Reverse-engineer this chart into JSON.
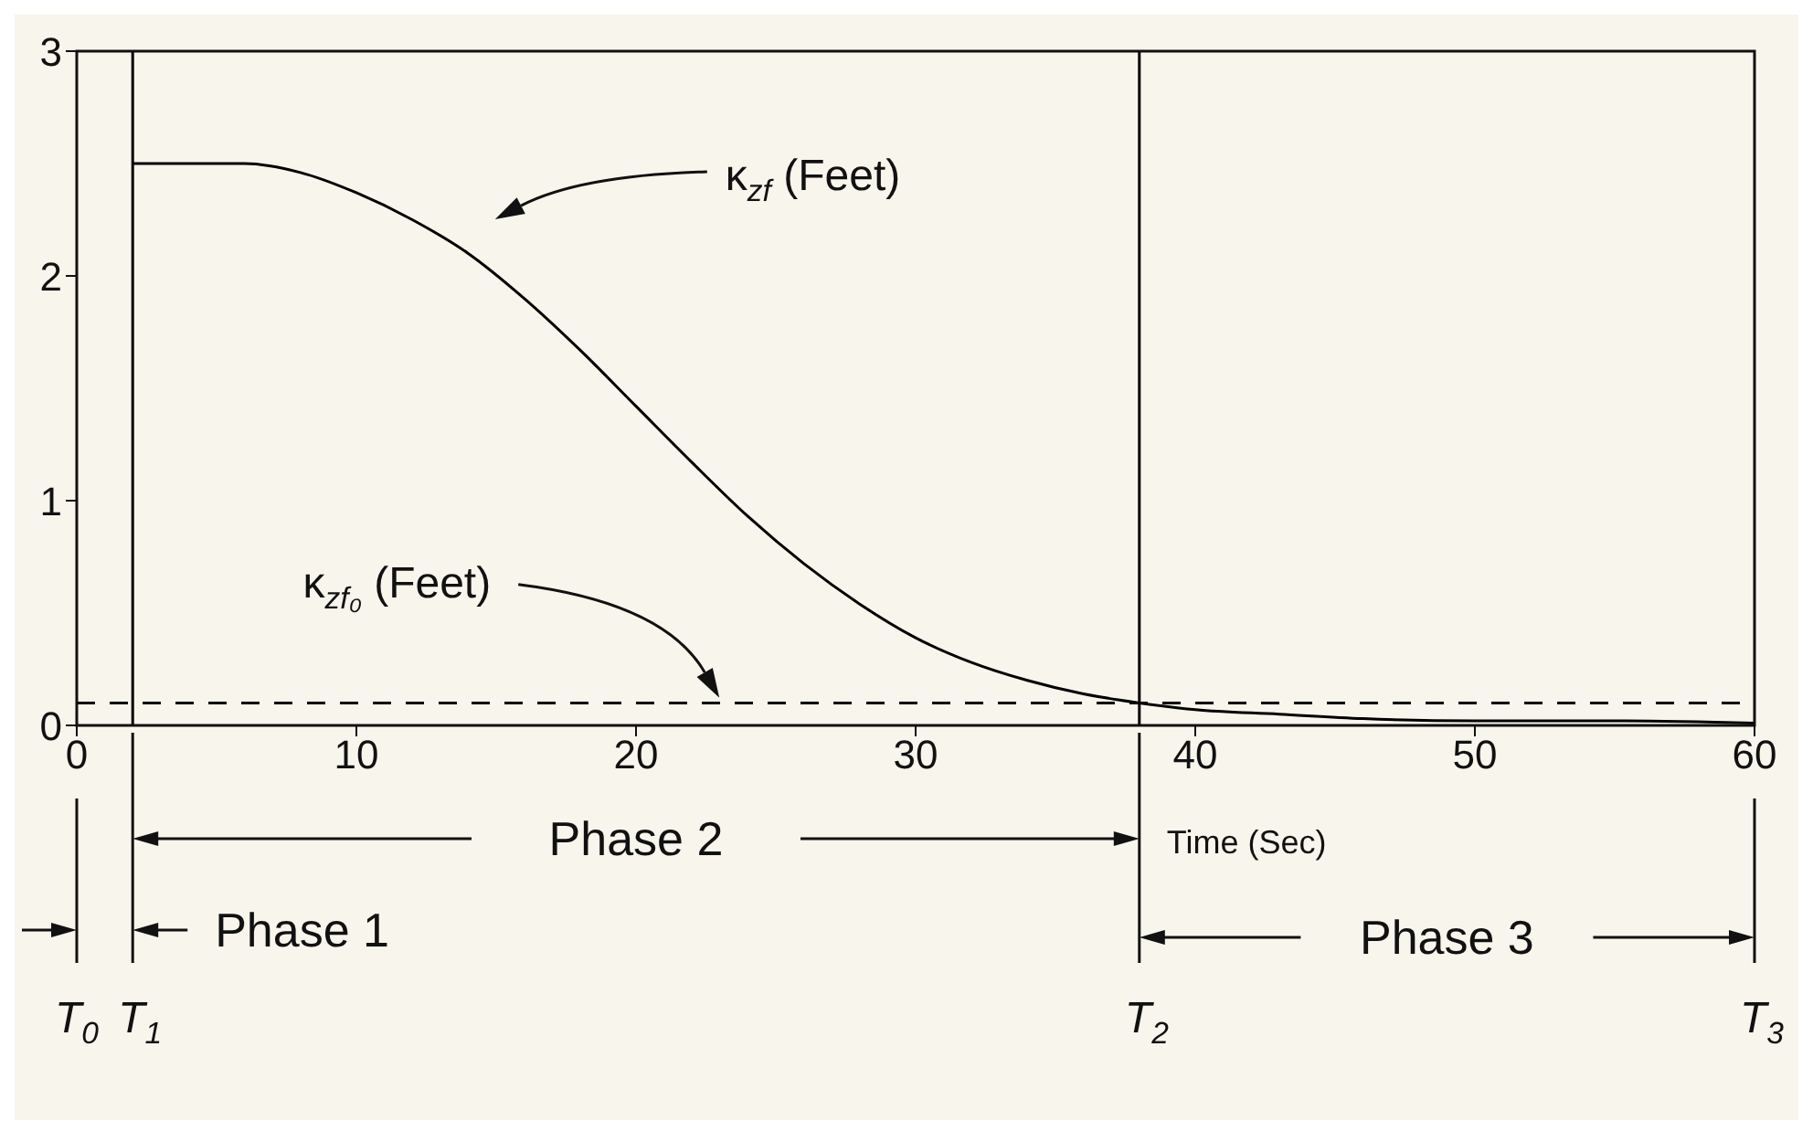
{
  "chart_data": {
    "type": "line",
    "xlabel": "Time (Sec)",
    "x": [
      2,
      4,
      6,
      8,
      10,
      12,
      14,
      16,
      18,
      20,
      22,
      24,
      26,
      28,
      30,
      32,
      34,
      36,
      38,
      40,
      43,
      46,
      50,
      55,
      60
    ],
    "series": [
      {
        "color": "#000000",
        "values": [
          2.5,
          2.5,
          2.5,
          2.46,
          2.37,
          2.25,
          2.1,
          1.9,
          1.67,
          1.42,
          1.17,
          0.93,
          0.72,
          0.54,
          0.39,
          0.28,
          0.2,
          0.14,
          0.1,
          0.07,
          0.05,
          0.03,
          0.02,
          0.02,
          0.01
        ]
      }
    ],
    "xlim": [
      0,
      60
    ],
    "xticks": [
      0,
      10,
      20,
      30,
      40,
      50,
      60
    ],
    "ylim": [
      0,
      3
    ],
    "yticks": [
      0,
      1,
      2,
      3
    ],
    "marker": "none",
    "line_style": "solid",
    "ref_lines": [
      {
        "axis": "x",
        "value": 2,
        "color": "#000000",
        "line_style": "solid"
      },
      {
        "axis": "x",
        "value": 38,
        "color": "#000000",
        "line_style": "solid"
      },
      {
        "axis": "y",
        "value": 0.1,
        "color": "#000000",
        "line_style": "dashed"
      }
    ],
    "annotations": [
      "κ$_{zf}$ (Feet)",
      "κ$_{zf₀}$ (Feet)",
      "Phase 1",
      "Phase 2",
      "Phase 3",
      "T$_{0}$",
      "T$_{1}$",
      "T$_{2}$",
      "T$_{3}$"
    ]
  }
}
